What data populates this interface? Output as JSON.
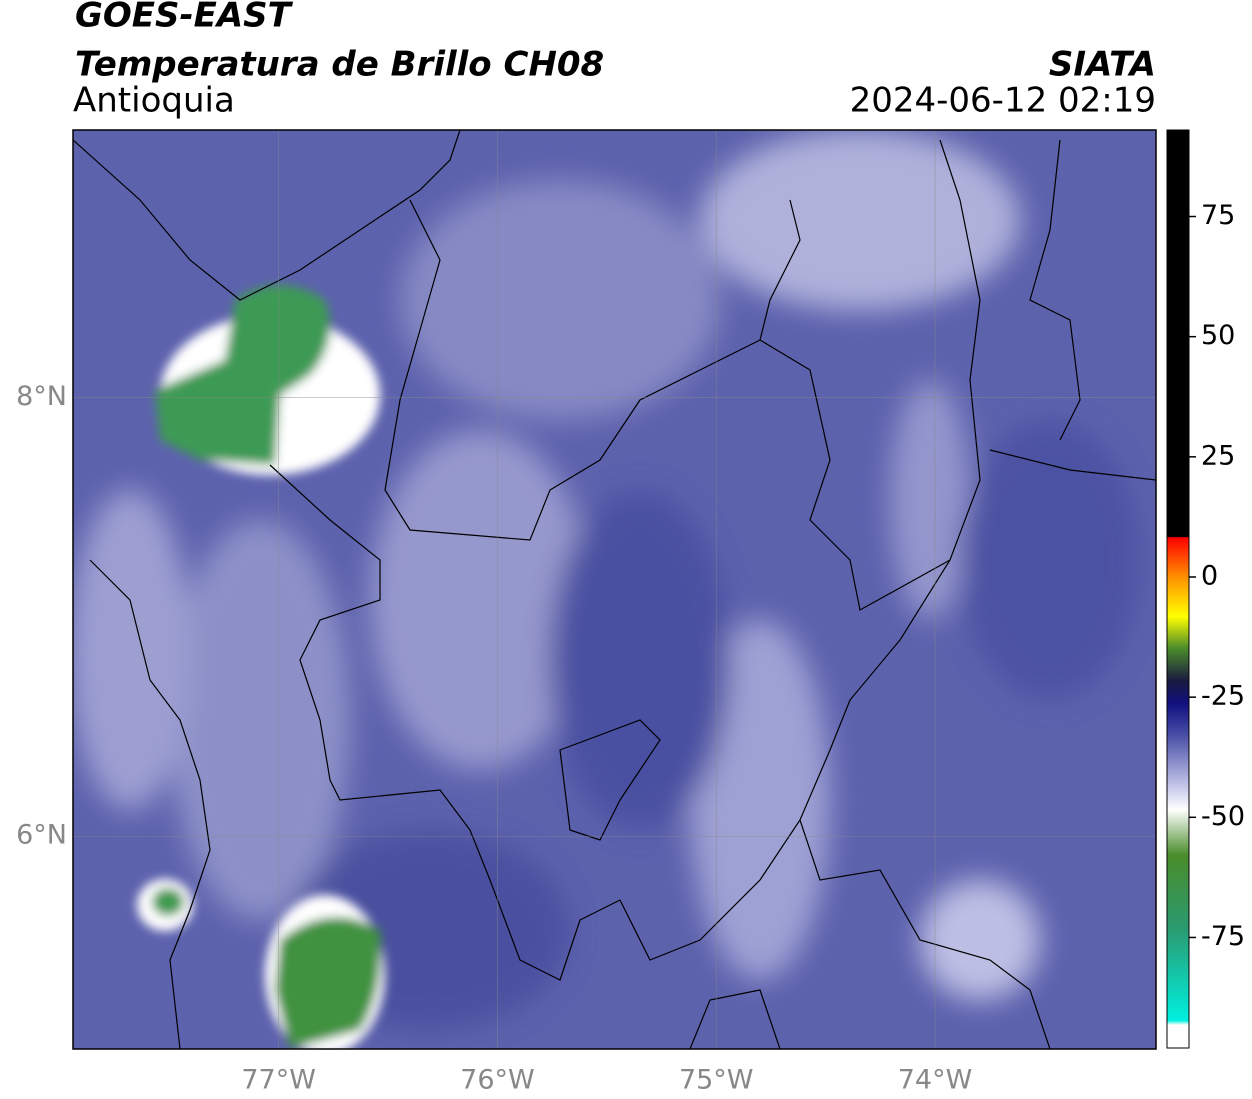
{
  "title": "GOES-EAST",
  "subtitle": "Temperatura de Brillo CH08",
  "region": "Antioquia",
  "source": "SIATA",
  "timestamp": "2024-06-12 02:19",
  "map": {
    "xlim": [
      -77.94,
      -72.99
    ],
    "ylim": [
      5.03,
      9.22
    ],
    "xticks": [
      {
        "value": -77,
        "label": "77°W"
      },
      {
        "value": -76,
        "label": "76°W"
      },
      {
        "value": -75,
        "label": "75°W"
      },
      {
        "value": -74,
        "label": "74°W"
      }
    ],
    "yticks": [
      {
        "value": 8,
        "label": "8°N"
      },
      {
        "value": 6,
        "label": "6°N"
      }
    ],
    "grid": true
  },
  "colorbar": {
    "lim": [
      -98,
      93
    ],
    "ticks": [
      75,
      50,
      25,
      0,
      -25,
      -50,
      -75
    ]
  }
}
